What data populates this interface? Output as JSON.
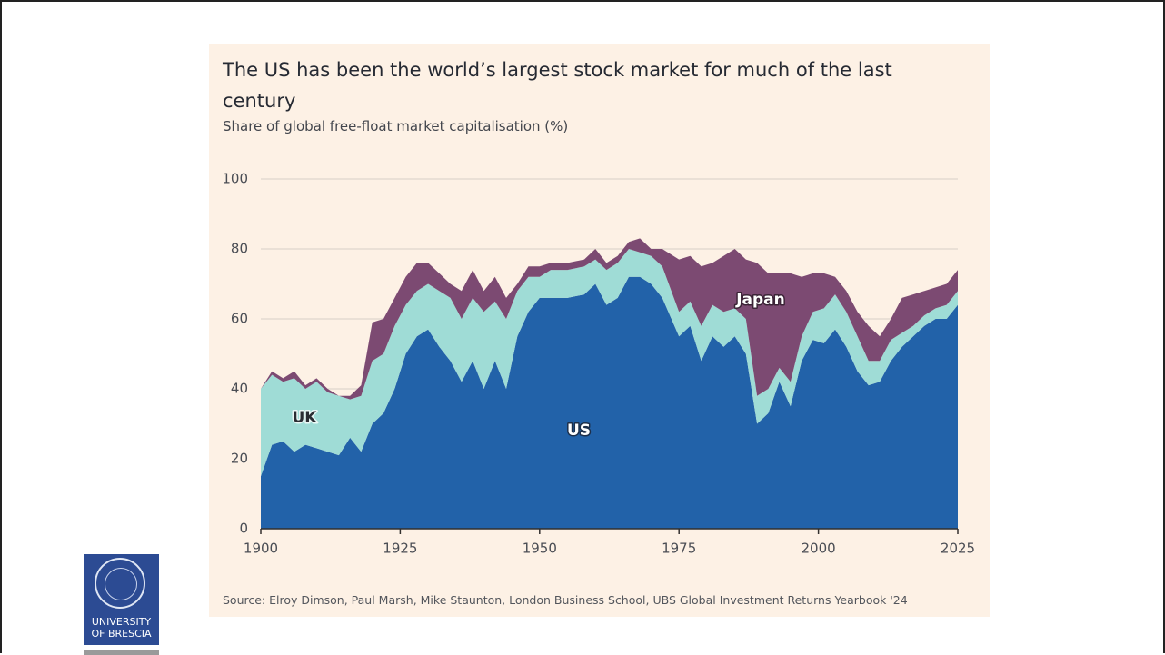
{
  "chart_data": {
    "type": "stacked-area",
    "title": "The US has been the world’s largest stock market for much of the last century",
    "subtitle": "Share of global free-float market capitalisation (%)",
    "source": "Source: Elroy Dimson, Paul Marsh, Mike Staunton, London Business School, UBS Global Investment Returns Yearbook '24",
    "x": [
      1900,
      1902,
      1904,
      1906,
      1908,
      1910,
      1912,
      1914,
      1916,
      1918,
      1920,
      1922,
      1924,
      1926,
      1928,
      1930,
      1932,
      1934,
      1936,
      1938,
      1940,
      1942,
      1944,
      1946,
      1948,
      1950,
      1952,
      1955,
      1958,
      1960,
      1962,
      1964,
      1966,
      1968,
      1970,
      1972,
      1975,
      1977,
      1979,
      1981,
      1983,
      1985,
      1987,
      1989,
      1991,
      1993,
      1995,
      1997,
      1999,
      2001,
      2003,
      2005,
      2007,
      2009,
      2011,
      2013,
      2015,
      2017,
      2019,
      2021,
      2023,
      2025
    ],
    "series": [
      {
        "name": "US",
        "color": "#2262a9",
        "values": [
          15,
          24,
          25,
          22,
          24,
          23,
          22,
          21,
          26,
          22,
          30,
          33,
          40,
          50,
          55,
          57,
          52,
          48,
          42,
          48,
          40,
          48,
          40,
          55,
          62,
          66,
          66,
          66,
          67,
          70,
          64,
          66,
          72,
          72,
          70,
          66,
          55,
          58,
          48,
          55,
          52,
          55,
          50,
          30,
          33,
          42,
          35,
          48,
          54,
          53,
          57,
          52,
          45,
          41,
          42,
          48,
          52,
          55,
          58,
          60,
          60,
          64
        ]
      },
      {
        "name": "UK",
        "color": "#9fdcd6",
        "values": [
          25,
          20,
          17,
          21,
          16,
          19,
          17,
          17,
          11,
          16,
          18,
          17,
          18,
          14,
          13,
          13,
          16,
          18,
          18,
          18,
          22,
          17,
          20,
          13,
          10,
          6,
          8,
          8,
          8,
          7,
          10,
          10,
          8,
          7,
          8,
          9,
          7,
          7,
          10,
          9,
          10,
          8,
          10,
          8,
          7,
          4,
          7,
          7,
          8,
          10,
          10,
          10,
          10,
          7,
          6,
          6,
          4,
          3,
          3,
          3,
          4,
          4
        ]
      },
      {
        "name": "Japan",
        "color": "#7c4a72",
        "values": [
          0,
          1,
          1,
          2,
          1,
          1,
          1,
          0,
          1,
          3,
          11,
          10,
          8,
          8,
          8,
          6,
          5,
          4,
          8,
          8,
          6,
          7,
          6,
          2,
          3,
          3,
          2,
          2,
          2,
          3,
          2,
          2,
          2,
          4,
          2,
          5,
          15,
          13,
          17,
          12,
          16,
          17,
          17,
          38,
          33,
          27,
          31,
          17,
          11,
          10,
          5,
          6,
          7,
          10,
          7,
          6,
          10,
          9,
          7,
          6,
          6,
          6
        ]
      }
    ],
    "xlim": [
      1900,
      2025
    ],
    "xticks": [
      1900,
      1925,
      1950,
      1975,
      2000,
      2025
    ],
    "ylim": [
      0,
      100
    ],
    "yticks": [
      0,
      20,
      40,
      60,
      80,
      100
    ],
    "grid": true
  },
  "logo": {
    "lines": [
      "UNIVERSITY",
      "OF BRESCIA"
    ]
  }
}
